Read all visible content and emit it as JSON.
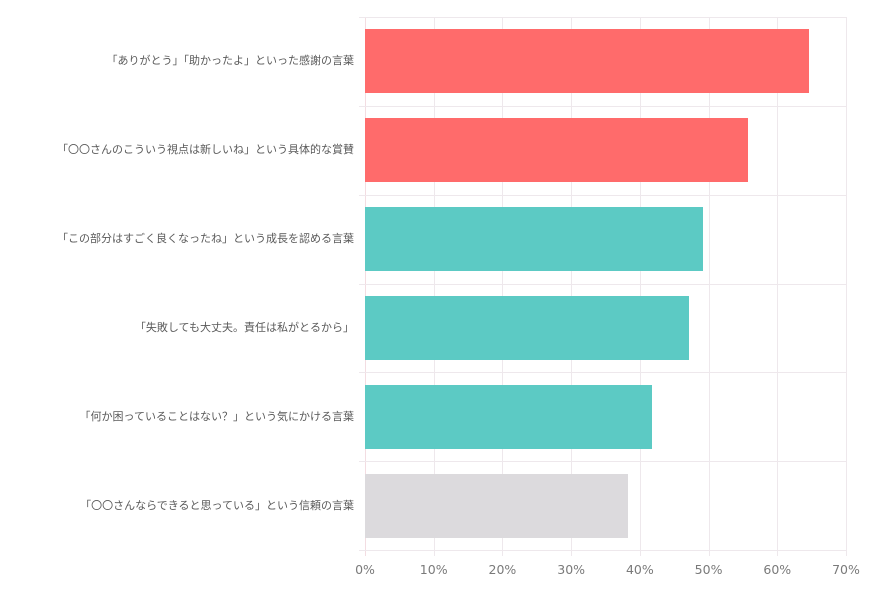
{
  "chart_data": {
    "type": "bar",
    "orientation": "horizontal",
    "title": "",
    "xlabel": "",
    "ylabel": "",
    "xlim": [
      0,
      70
    ],
    "grid": true,
    "legend": null,
    "categories": [
      "「ありがとう」「助かったよ」といった感謝の言葉",
      "「〇〇さんのこういう視点は新しいね」という具体的な賞賛",
      "「この部分はすごく良くなったね」という成長を認める言葉",
      "「失敗しても大丈夫。責任は私がとるから」",
      "「何か困っていることはない？」という気にかける言葉",
      "「〇〇さんならできると思っている」という信頼の言葉"
    ],
    "values": [
      64.6,
      55.7,
      49.2,
      47.2,
      41.8,
      38.3
    ],
    "bar_colors": [
      "#ff6b6b",
      "#ff6b6b",
      "#5ccac4",
      "#5ccac4",
      "#5ccac4",
      "#dcdadd"
    ],
    "x_ticks": [
      "0%",
      "10%",
      "20%",
      "30%",
      "40%",
      "50%",
      "60%",
      "70%"
    ],
    "x_tick_values": [
      0,
      10,
      20,
      30,
      40,
      50,
      60,
      70
    ]
  },
  "colors": {
    "highlight": "#ff6b6b",
    "secondary": "#5ccac4",
    "muted": "#dcdadd",
    "grid": "#eee8ec"
  }
}
